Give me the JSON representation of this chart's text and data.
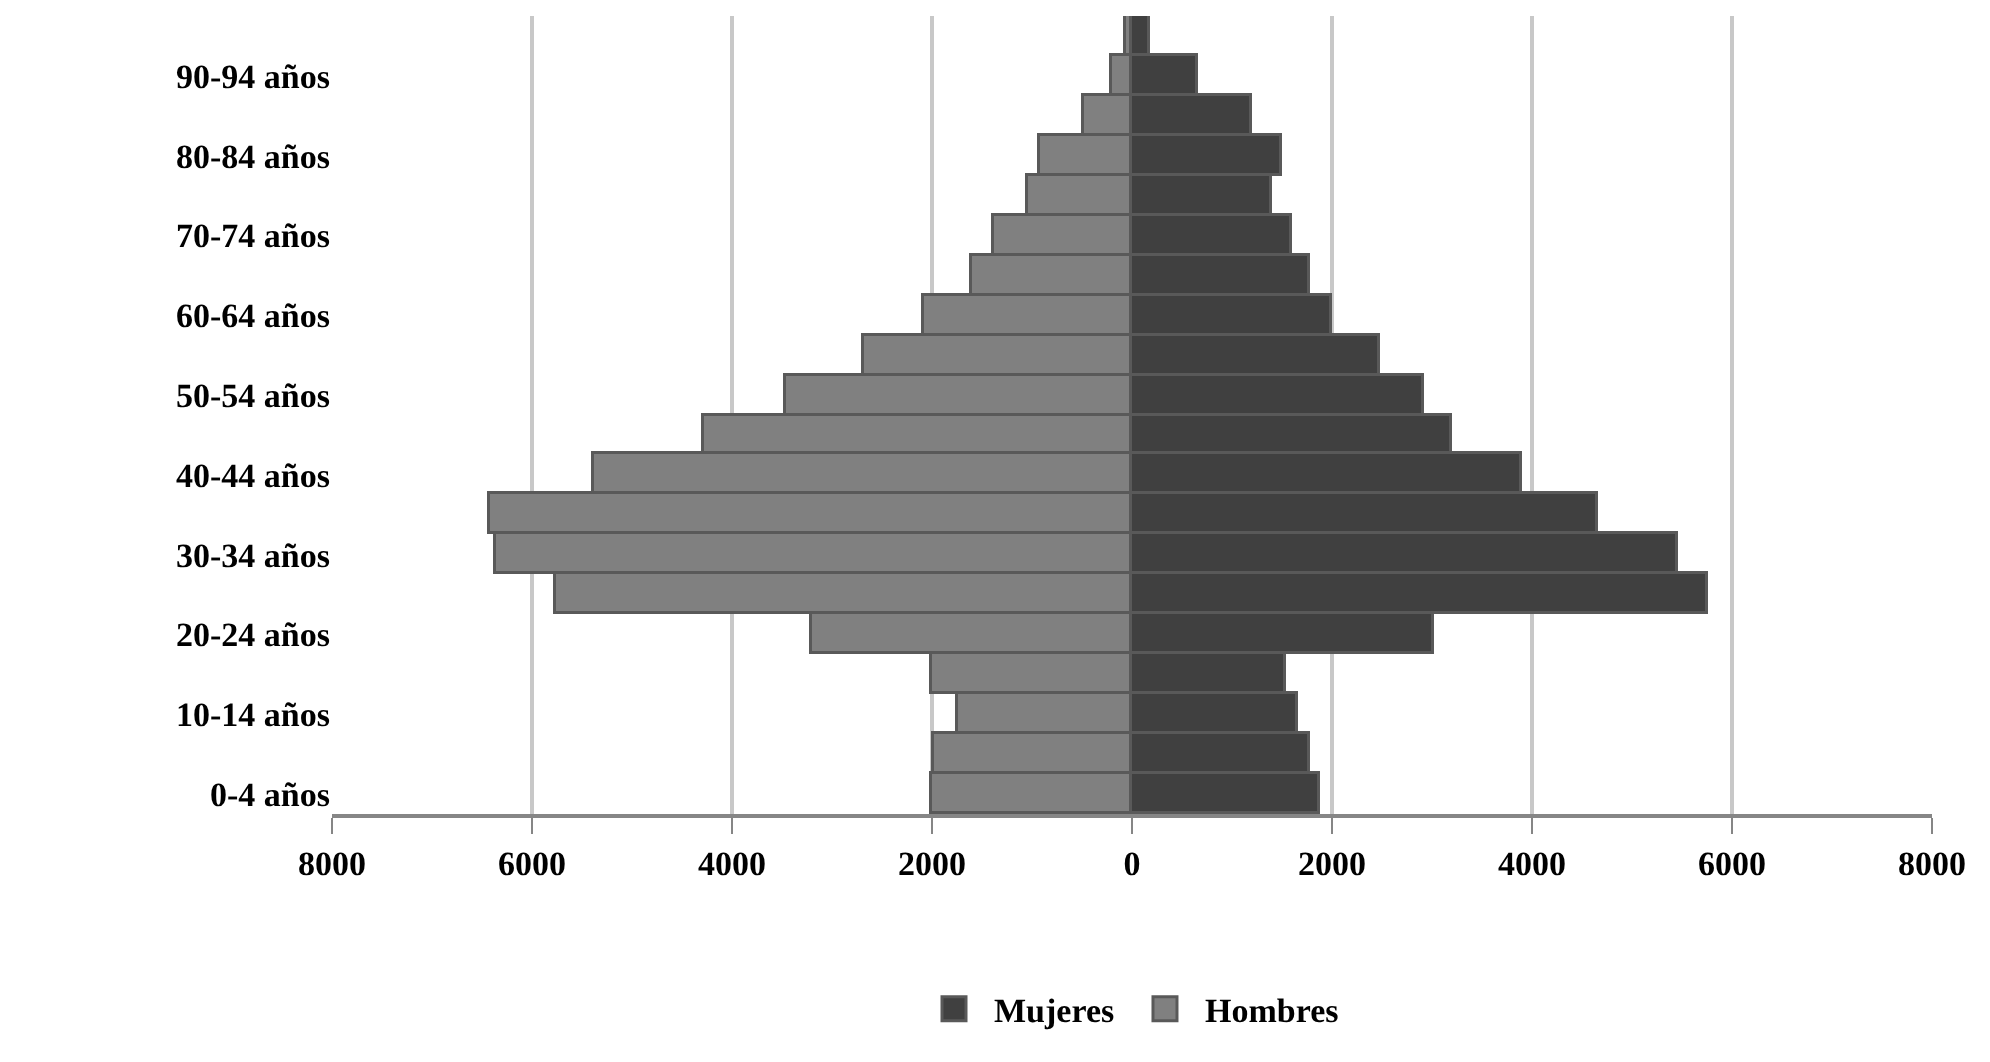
{
  "chart_data": {
    "type": "bar",
    "orientation": "horizontal",
    "stacked": true,
    "categories": [
      null,
      "90-94 años",
      null,
      "80-84 años",
      null,
      "70-74 años",
      null,
      "60-64 años",
      null,
      "50-54 años",
      null,
      "40-44 años",
      null,
      "30-34 años",
      null,
      "20-24 años",
      null,
      "10-14 años",
      null,
      "0-4 años"
    ],
    "series": [
      {
        "name": "Mujeres",
        "color": "#404040",
        "values": [
          180,
          650,
          1200,
          1490,
          1390,
          1600,
          1770,
          2000,
          2470,
          2920,
          3190,
          3890,
          4660,
          5450,
          5750,
          3020,
          1540,
          1650,
          1770,
          1870
        ]
      },
      {
        "name": "Hombres",
        "color": "#808080",
        "values": [
          -60,
          -200,
          -490,
          -920,
          -1040,
          -1390,
          -1610,
          -2080,
          -2690,
          -3470,
          -4290,
          -5390,
          -6430,
          -6370,
          -5770,
          -3210,
          -2000,
          -1740,
          -1990,
          -2000
        ]
      }
    ],
    "xlim": [
      -8000,
      8000
    ],
    "xticks": [
      {
        "value": -8000,
        "label": "8000"
      },
      {
        "value": -6000,
        "label": "6000"
      },
      {
        "value": -4000,
        "label": "4000"
      },
      {
        "value": -2000,
        "label": "2000"
      },
      0,
      2000,
      4000,
      6000,
      8000
    ],
    "grid": "x",
    "legend": "bottom"
  }
}
